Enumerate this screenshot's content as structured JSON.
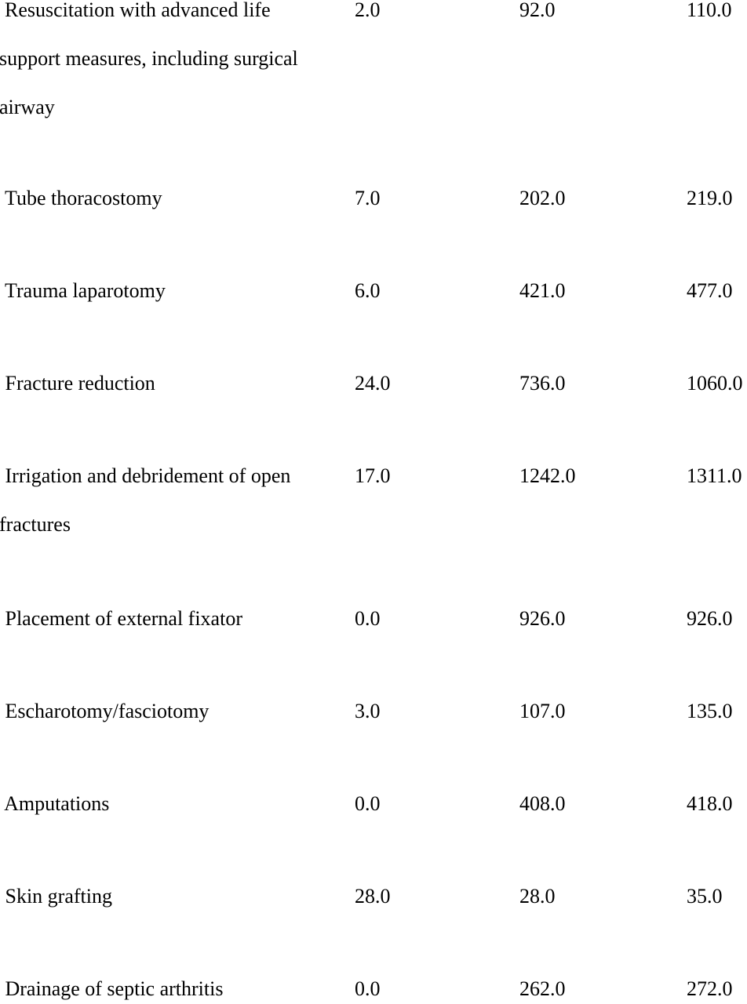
{
  "table": {
    "rows": [
      {
        "label_lines": [
          "Resuscitation with advanced life",
          "support measures, including surgical",
          "airway"
        ],
        "v1": "2.0",
        "v2": "92.0",
        "v3": "110.0"
      },
      {
        "label_lines": [
          " Tube thoracostomy"
        ],
        "v1": "7.0",
        "v2": "202.0",
        "v3": "219.0"
      },
      {
        "label_lines": [
          " Trauma laparotomy"
        ],
        "v1": "6.0",
        "v2": "421.0",
        "v3": "477.0"
      },
      {
        "label_lines": [
          " Fracture reduction"
        ],
        "v1": "24.0",
        "v2": "736.0",
        "v3": "1060.0"
      },
      {
        "label_lines": [
          " Irrigation and debridement of open",
          "fractures"
        ],
        "v1": "17.0",
        "v2": "1242.0",
        "v3": "1311.0"
      },
      {
        "label_lines": [
          " Placement of external fixator"
        ],
        "v1": "0.0",
        "v2": "926.0",
        "v3": "926.0"
      },
      {
        "label_lines": [
          " Escharotomy/fasciotomy"
        ],
        "v1": "3.0",
        "v2": "107.0",
        "v3": "135.0"
      },
      {
        "label_lines": [
          " Amputations"
        ],
        "v1": "0.0",
        "v2": "408.0",
        "v3": "418.0"
      },
      {
        "label_lines": [
          " Skin grafting"
        ],
        "v1": "28.0",
        "v2": "28.0",
        "v3": "35.0"
      },
      {
        "label_lines": [
          " Drainage of septic arthritis"
        ],
        "v1": "0.0",
        "v2": "262.0",
        "v3": "272.0"
      }
    ]
  }
}
